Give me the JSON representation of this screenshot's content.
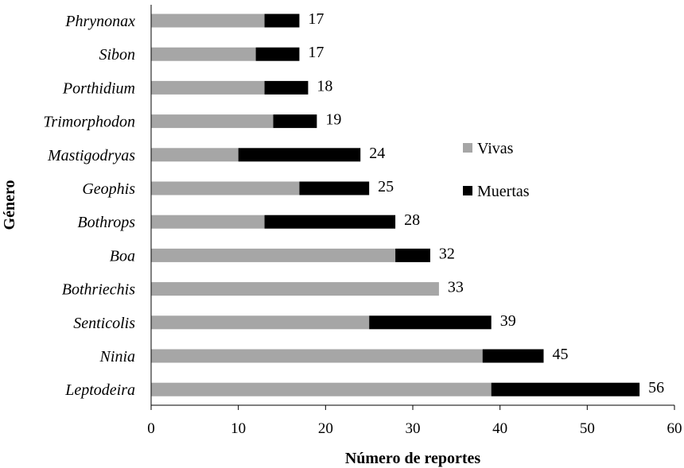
{
  "chart_data": {
    "type": "bar",
    "orientation": "horizontal",
    "stacked": true,
    "categories": [
      "Phrynonax",
      "Sibon",
      "Porthidium",
      "Trimorphodon",
      "Mastigodryas",
      "Geophis",
      "Bothrops",
      "Boa",
      "Bothriechis",
      "Senticolis",
      "Ninia",
      "Leptodeira"
    ],
    "series": [
      {
        "name": "Vivas",
        "color": "#a6a6a6",
        "values": [
          13,
          12,
          13,
          14,
          10,
          17,
          13,
          28,
          33,
          25,
          38,
          39
        ]
      },
      {
        "name": "Muertas",
        "color": "#000000",
        "values": [
          4,
          5,
          5,
          5,
          14,
          8,
          15,
          4,
          0,
          14,
          7,
          17
        ]
      }
    ],
    "totals": [
      "17",
      "17",
      "18",
      "19",
      "24",
      "25",
      "28",
      "32",
      "33",
      "39",
      "45",
      "56"
    ],
    "xlabel": "Número de reportes",
    "ylabel": "Género",
    "xlim": [
      0,
      60
    ],
    "xticks": [
      "0",
      "10",
      "20",
      "30",
      "40",
      "50",
      "60"
    ],
    "grid": false,
    "legend_position": "right"
  }
}
